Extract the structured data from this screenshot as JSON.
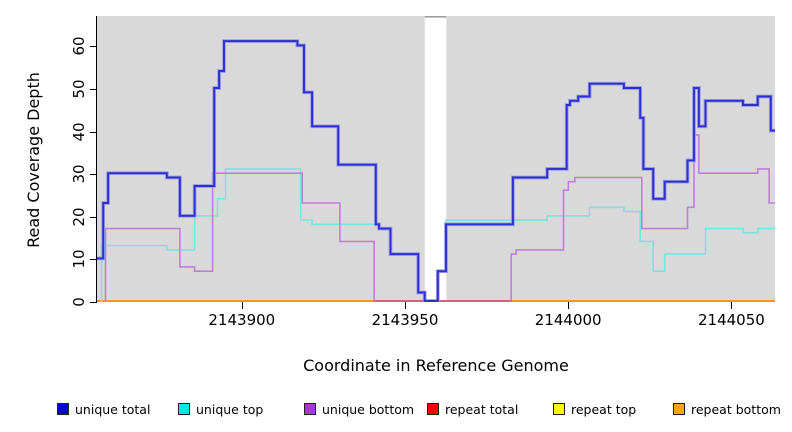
{
  "figure": {
    "y_axis": {
      "title": "Read Coverage Depth",
      "ticks": [
        {
          "value": 0,
          "label": "0"
        },
        {
          "value": 10,
          "label": "10"
        },
        {
          "value": 20,
          "label": "20"
        },
        {
          "value": 30,
          "label": "30"
        },
        {
          "value": 40,
          "label": "40"
        },
        {
          "value": 50,
          "label": "50"
        },
        {
          "value": 60,
          "label": "60"
        }
      ]
    },
    "x_axis": {
      "title": "Coordinate in Reference Genome",
      "ticks": [
        {
          "value": 2143900,
          "label": "2143900"
        },
        {
          "value": 2143950,
          "label": "2143950"
        },
        {
          "value": 2144000,
          "label": "2144000"
        },
        {
          "value": 2144050,
          "label": "2144050"
        }
      ]
    },
    "legend": [
      {
        "label": "unique total",
        "swatch_color": "#0101dd"
      },
      {
        "label": "unique top",
        "swatch_color": "#00e6e6"
      },
      {
        "label": "unique bottom",
        "swatch_color": "#a23bd6"
      },
      {
        "label": "repeat total",
        "swatch_color": "#fb0000"
      },
      {
        "label": "repeat top",
        "swatch_color": "#fcff01"
      },
      {
        "label": "repeat bottom",
        "swatch_color": "#ffa513"
      }
    ]
  },
  "chart_data": {
    "type": "line",
    "subtype": "step",
    "title": "",
    "xlabel": "Coordinate in Reference Genome",
    "ylabel": "Read Coverage Depth",
    "xlim": [
      2143855.6,
      2144063.3
    ],
    "ylim": [
      0,
      67
    ],
    "x_ticks": [
      2143900,
      2143950,
      2144000,
      2144050
    ],
    "y_ticks": [
      0,
      10,
      20,
      30,
      40,
      50,
      60
    ],
    "panel_background": "#d9d9d9",
    "grid": false,
    "legend_position": "bottom",
    "no_data_gap_x": [
      2143956,
      2143962.6
    ],
    "series": [
      {
        "name": "unique total",
        "color": "#2f2fcf",
        "halo": "#9a9ae8",
        "line_width": 1.9,
        "x_end": 2144063.3,
        "steps": [
          [
            2143855.6,
            10
          ],
          [
            2143857.5,
            23
          ],
          [
            2143859,
            30
          ],
          [
            2143877,
            29
          ],
          [
            2143881,
            20
          ],
          [
            2143885.5,
            27
          ],
          [
            2143891.5,
            50
          ],
          [
            2143893,
            54
          ],
          [
            2143894.5,
            61
          ],
          [
            2143917,
            60
          ],
          [
            2143919,
            49
          ],
          [
            2143921.5,
            41
          ],
          [
            2143929.5,
            32
          ],
          [
            2143941,
            18
          ],
          [
            2143942,
            17
          ],
          [
            2143945.5,
            11
          ],
          [
            2143954,
            2
          ],
          [
            2143956,
            0
          ],
          [
            2143960,
            7
          ],
          [
            2143962.5,
            18
          ],
          [
            2143983,
            29
          ],
          [
            2143993.5,
            31
          ],
          [
            2143999.5,
            46
          ],
          [
            2144000.5,
            47
          ],
          [
            2144003,
            48
          ],
          [
            2144006.5,
            51
          ],
          [
            2144017,
            50
          ],
          [
            2144022,
            43
          ],
          [
            2144023,
            31
          ],
          [
            2144026,
            24
          ],
          [
            2144029.5,
            28
          ],
          [
            2144036.5,
            33
          ],
          [
            2144038.5,
            50
          ],
          [
            2144040,
            41
          ],
          [
            2144042,
            47
          ],
          [
            2144053.5,
            46
          ],
          [
            2144058,
            48
          ],
          [
            2144062,
            40
          ]
        ]
      },
      {
        "name": "unique top",
        "color": "#79e4de",
        "line_width": 1.6,
        "x_end": 2144063.3,
        "steps": [
          [
            2143856.8,
            0
          ],
          [
            2143857,
            13
          ],
          [
            2143877,
            12
          ],
          [
            2143885.5,
            20
          ],
          [
            2143892.5,
            24
          ],
          [
            2143895,
            31
          ],
          [
            2143918,
            19
          ],
          [
            2143921.5,
            18
          ],
          [
            2143942,
            17
          ],
          [
            2143945.5,
            11
          ],
          [
            2143954,
            2
          ],
          [
            2143956,
            0
          ],
          [
            2143960,
            7
          ],
          [
            2143962.5,
            19
          ],
          [
            2143993.5,
            20
          ],
          [
            2144006.5,
            22
          ],
          [
            2144017,
            21
          ],
          [
            2144022,
            14
          ],
          [
            2144026,
            7
          ],
          [
            2144029.5,
            11
          ],
          [
            2144042,
            17
          ],
          [
            2144053.5,
            16
          ],
          [
            2144058,
            17
          ]
        ]
      },
      {
        "name": "unique bottom",
        "color": "#bd80d8",
        "line_width": 1.6,
        "x_end": 2144063.3,
        "steps": [
          [
            2143858,
            0
          ],
          [
            2143858.2,
            17
          ],
          [
            2143881,
            8
          ],
          [
            2143885.5,
            7
          ],
          [
            2143891,
            30
          ],
          [
            2143918.5,
            23
          ],
          [
            2143930,
            14
          ],
          [
            2143940.5,
            0
          ],
          [
            2143982.5,
            11
          ],
          [
            2143984,
            12
          ],
          [
            2143998.5,
            26
          ],
          [
            2144000,
            28
          ],
          [
            2144002,
            29
          ],
          [
            2144022.5,
            17
          ],
          [
            2144036.5,
            22
          ],
          [
            2144038.5,
            39
          ],
          [
            2144040,
            30
          ],
          [
            2144058,
            31
          ],
          [
            2144061.5,
            23
          ]
        ]
      },
      {
        "name": "repeat total",
        "color": "#d1537a",
        "line_width": 1.6,
        "x_end": 2143982.5,
        "note": "value 0 across entire range; visible as rose baseline segment where unique bottom sits at 0",
        "steps": [
          [
            2143940.5,
            0
          ]
        ]
      },
      {
        "name": "repeat top",
        "color": "#f5f500",
        "line_width": 1.6,
        "x_end": 2144063.3,
        "note": "value 0 across entire range; hidden beneath repeat bottom",
        "steps": [
          [
            2143855.6,
            0
          ]
        ]
      },
      {
        "name": "repeat bottom",
        "color": "#ff9614",
        "line_width": 2,
        "x_end": 2144063.3,
        "note": "value 0 across entire range; drawn along x-axis baseline",
        "steps": [
          [
            2143855.6,
            0
          ]
        ]
      }
    ]
  }
}
